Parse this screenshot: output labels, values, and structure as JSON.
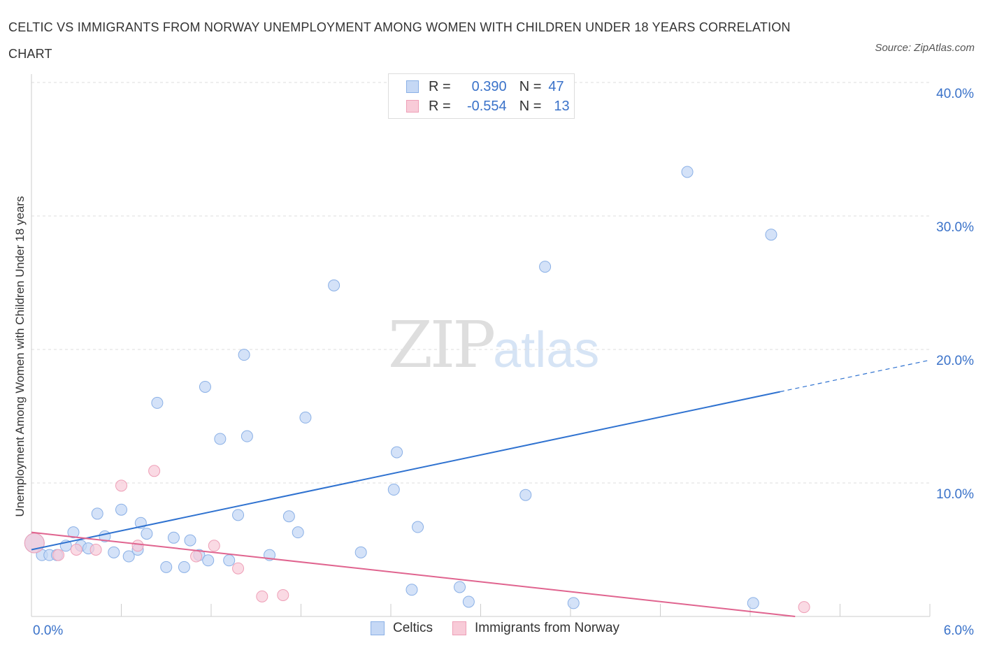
{
  "title": "CELTIC VS IMMIGRANTS FROM NORWAY UNEMPLOYMENT AMONG WOMEN WITH CHILDREN UNDER 18 YEARS CORRELATION CHART",
  "source": "Source: ZipAtlas.com",
  "watermark": {
    "zip": "ZIP",
    "atlas": "atlas"
  },
  "legend": {
    "rows": [
      {
        "r_label": "R =",
        "r_value": "0.390",
        "n_label": "N =",
        "n_value": "47"
      },
      {
        "r_label": "R =",
        "r_value": "-0.554",
        "n_label": "N =",
        "n_value": "13"
      }
    ]
  },
  "bottom_legend": {
    "celtics": "Celtics",
    "norway": "Immigrants from Norway"
  },
  "colors": {
    "celtics_fill": "#c5d8f5",
    "celtics_stroke": "#8ab0e6",
    "celtics_line": "#2f72d0",
    "norway_fill": "#f8cbd8",
    "norway_stroke": "#ee9fb7",
    "norway_line": "#e0648f",
    "tick_label": "#3a72c9",
    "grid": "#dddddd"
  },
  "chart_data": {
    "type": "scatter",
    "title": "CELTIC VS IMMIGRANTS FROM NORWAY UNEMPLOYMENT AMONG WOMEN WITH CHILDREN UNDER 18 YEARS CORRELATION CHART",
    "xlabel": "",
    "ylabel": "Unemployment Among Women with Children Under 18 years",
    "xlim": [
      0,
      6
    ],
    "ylim": [
      0,
      40
    ],
    "x_tick_labels": [
      "0.0%",
      "6.0%"
    ],
    "y_ticks": [
      10,
      20,
      30,
      40
    ],
    "y_tick_labels": [
      "10.0%",
      "20.0%",
      "30.0%",
      "40.0%"
    ],
    "grid": true,
    "legend_position": "top-center",
    "series": [
      {
        "name": "Celtics",
        "points": [
          [
            0.02,
            5.5
          ],
          [
            0.07,
            4.6
          ],
          [
            0.12,
            4.6
          ],
          [
            0.17,
            4.6
          ],
          [
            0.23,
            5.3
          ],
          [
            0.28,
            6.3
          ],
          [
            0.33,
            5.3
          ],
          [
            0.38,
            5.1
          ],
          [
            0.44,
            7.7
          ],
          [
            0.49,
            6.0
          ],
          [
            0.55,
            4.8
          ],
          [
            0.6,
            8.0
          ],
          [
            0.65,
            4.5
          ],
          [
            0.71,
            5.0
          ],
          [
            0.73,
            7.0
          ],
          [
            0.77,
            6.2
          ],
          [
            0.84,
            16.0
          ],
          [
            0.9,
            3.7
          ],
          [
            0.95,
            5.9
          ],
          [
            1.02,
            3.7
          ],
          [
            1.06,
            5.7
          ],
          [
            1.12,
            4.6
          ],
          [
            1.16,
            17.2
          ],
          [
            1.18,
            4.2
          ],
          [
            1.26,
            13.3
          ],
          [
            1.32,
            4.2
          ],
          [
            1.38,
            7.6
          ],
          [
            1.42,
            19.6
          ],
          [
            1.44,
            13.5
          ],
          [
            1.59,
            4.6
          ],
          [
            1.72,
            7.5
          ],
          [
            1.78,
            6.3
          ],
          [
            1.83,
            14.9
          ],
          [
            2.02,
            24.8
          ],
          [
            2.2,
            4.8
          ],
          [
            2.42,
            9.5
          ],
          [
            2.44,
            12.3
          ],
          [
            2.54,
            2.0
          ],
          [
            2.58,
            6.7
          ],
          [
            2.86,
            2.2
          ],
          [
            2.92,
            1.1
          ],
          [
            3.3,
            9.1
          ],
          [
            3.43,
            26.2
          ],
          [
            3.62,
            1.0
          ],
          [
            4.38,
            33.3
          ],
          [
            4.82,
            1.0
          ],
          [
            4.94,
            28.6
          ]
        ],
        "trend": {
          "x": [
            0,
            6
          ],
          "y": [
            5.0,
            19.2
          ],
          "solid_until_x": 5.0
        }
      },
      {
        "name": "Immigrants from Norway",
        "points": [
          [
            0.02,
            5.5
          ],
          [
            0.18,
            4.6
          ],
          [
            0.3,
            5.0
          ],
          [
            0.43,
            5.0
          ],
          [
            0.6,
            9.8
          ],
          [
            0.71,
            5.3
          ],
          [
            0.82,
            10.9
          ],
          [
            1.1,
            4.5
          ],
          [
            1.22,
            5.3
          ],
          [
            1.38,
            3.6
          ],
          [
            1.54,
            1.5
          ],
          [
            1.68,
            1.6
          ],
          [
            5.16,
            0.7
          ]
        ],
        "trend": {
          "x": [
            0,
            5.1
          ],
          "y": [
            6.3,
            0.0
          ]
        }
      }
    ]
  }
}
